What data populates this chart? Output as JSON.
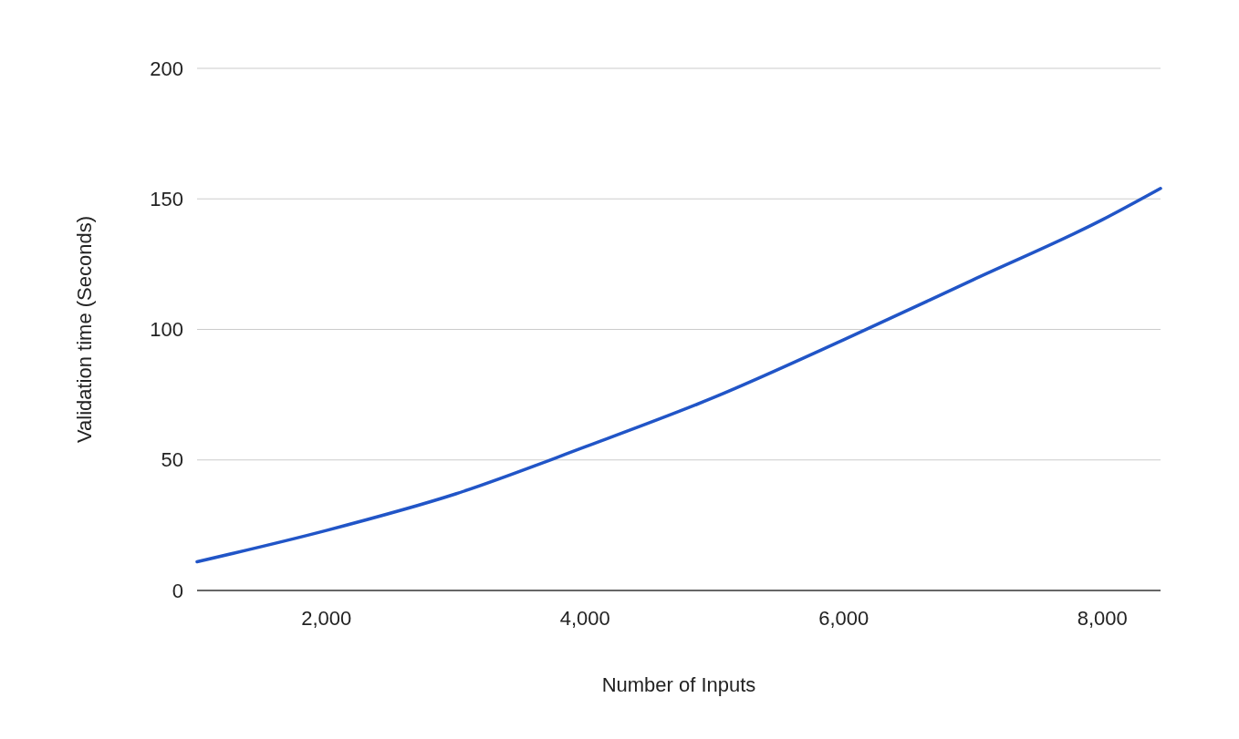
{
  "chart_data": {
    "type": "line",
    "xlabel": "Number of Inputs",
    "ylabel": "Validation time (Seconds)",
    "xlim": [
      1000,
      8450
    ],
    "xticks": [
      {
        "value": 2000,
        "label": "2,000"
      },
      {
        "value": 4000,
        "label": "4,000"
      },
      {
        "value": 6000,
        "label": "6,000"
      },
      {
        "value": 8000,
        "label": "8,000"
      }
    ],
    "ylim": [
      0,
      200
    ],
    "yticks": [
      0,
      50,
      100,
      150,
      200
    ],
    "grid": "y",
    "marker": "none",
    "line_style": "solid",
    "series": [
      {
        "color": "#2155c7",
        "x": [
          1000,
          2000,
          3000,
          4000,
          5000,
          6000,
          7000,
          8000,
          8450
        ],
        "values": [
          11,
          23,
          37,
          55,
          74,
          96,
          119,
          142,
          154
        ]
      }
    ]
  }
}
